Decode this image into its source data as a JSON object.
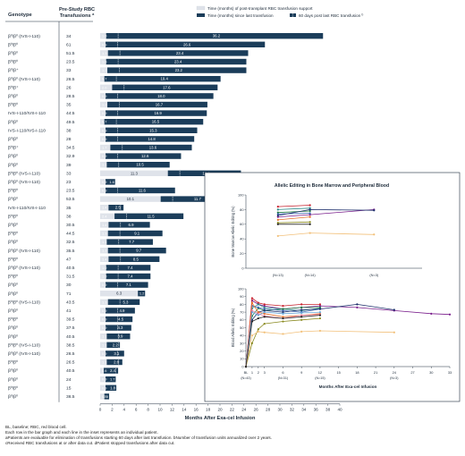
{
  "header": {
    "col_genotype": "Genotype",
    "col_transfusions_line1": "Pre-Study RBC",
    "col_transfusions_line2": "Transfusions",
    "col_transfusions_sup": "a"
  },
  "legend": {
    "items": [
      {
        "label": "Time (months) of post-transplant RBC transfusion support",
        "color": "#dfe3ea"
      },
      {
        "label": "Time (months) since last transfusion",
        "color": "#1b3d5a"
      },
      {
        "label": "60 days post last RBC transfusion",
        "color": "#1b3d5a",
        "sup": "b"
      }
    ]
  },
  "colors": {
    "support": "#dfe3ea",
    "since": "#1b3d5a",
    "marker": "#ffffff"
  },
  "chart_data": [
    {
      "type": "bar",
      "orientation": "horizontal",
      "stacked": true,
      "xlabel": "Months After Exa-cel Infusion",
      "xlim": [
        0,
        40
      ],
      "xticks": [
        0,
        2,
        4,
        6,
        8,
        10,
        12,
        14,
        16,
        18,
        20,
        22,
        24,
        26,
        28,
        30,
        32,
        34,
        36,
        38,
        40
      ],
      "categories": [
        "β0/β0 (IVS-I-110)",
        "β0/β0",
        "β0/β0",
        "β0/β0",
        "β0/β+",
        "β0/β0 (IVS-I-110)",
        "β0/β+",
        "β0/β0",
        "β0/β0",
        "IVS-I-110/IVS-I-110",
        "β0/β0",
        "IVS-I-110/IVS-I-110",
        "β0/β0",
        "β0/β+",
        "β0/β0",
        "β0/β0",
        "β0/β0 (IVS-I-110)",
        "β0/β0 (IVS-I-110)",
        "β0/β0",
        "β0/β0",
        "IVS-I-110/IVS-I-110",
        "β0/β0",
        "β0/β0",
        "β0/β0",
        "β0/β0",
        "β0/β0 (IVS-I-110)",
        "β0/β0",
        "β0/β0 (IVS-I-110)",
        "β0/β0",
        "β0/β0",
        "β0/β0",
        "β0/β0 (IVS-I-110)",
        "β0/β0",
        "β0/β0",
        "β0/β0",
        "β0/β0",
        "β0/β0 (IVS-I-110)",
        "β0/β0 (IVS-I-110)",
        "β0/β0",
        "β0/β0",
        "β0/β0",
        "β0/β0",
        "β0/β0"
      ],
      "transfusions": [
        "34",
        "61",
        "51.5",
        "23.5",
        "33",
        "26.5",
        "26",
        "28.5",
        "35",
        "44.5",
        "49.5",
        "38",
        "28",
        "34.5",
        "32.9",
        "39",
        "33",
        "23",
        "23.5",
        "53.5",
        "35",
        "38",
        "30.5",
        "44.5",
        "32.5",
        "35.5",
        "47",
        "40.5",
        "31.5",
        "30",
        "71",
        "43.5",
        "41",
        "39.5",
        "37.5",
        "40.5",
        "38.5",
        "26.5",
        "26.5",
        "40.5",
        "24",
        "15",
        "36.5"
      ],
      "series": [
        {
          "name": "Time (months) of post-transplant RBC transfusion support",
          "values": [
            1.0,
            0.9,
            1.3,
            1.0,
            1.2,
            0.7,
            2.0,
            0.9,
            1.2,
            0.9,
            0.7,
            0.9,
            0.9,
            1.7,
            0.9,
            1.1,
            11.3,
            0.9,
            0.9,
            10.1,
            1.4,
            2.4,
            1.4,
            1.3,
            1.1,
            1.3,
            1.4,
            1.0,
            1.0,
            0.9,
            6.3,
            1.3,
            0.9,
            0.9,
            0.9,
            1.1,
            1.1,
            0.9,
            1.1,
            0.6,
            0.9,
            0.9,
            0.7
          ]
        },
        {
          "name": "Time (months) since last transfusion",
          "values": [
            36.2,
            26.6,
            23.4,
            23.4,
            23.2,
            19.4,
            17.6,
            18.0,
            16.7,
            16.9,
            16.5,
            15.3,
            14.8,
            13.6,
            12.6,
            10.5,
            12.2,
            1.6,
            11.6,
            11.7,
            2.5,
            11.5,
            6.9,
            9.1,
            7.7,
            9.7,
            8.5,
            7.4,
            7.4,
            7.1,
            1.2,
            5.3,
            4.9,
            4.5,
            4.3,
            3.9,
            2.2,
            3.1,
            2.6,
            2.4,
            1.7,
            1.8,
            0.8
          ]
        }
      ],
      "labels_since": [
        "36.2",
        "26.6",
        "23.4",
        "23.4",
        "23.2",
        "19.4",
        "17.6",
        "18.0",
        "16.7",
        "16.9",
        "16.5",
        "15.3",
        "14.8",
        "13.6",
        "12.6",
        "10.5",
        "12.2",
        "1.6",
        "11.6",
        "11.7",
        "2.5",
        "11.5",
        "6.9",
        "9.1",
        "7.7",
        "9.7",
        "8.5",
        "7.4",
        "7.4",
        "7.1",
        "1.2",
        "5.3",
        "4.9",
        "4.5",
        "4.3",
        "3.9",
        "2.2",
        "3.1",
        "2.6",
        "2.4",
        "1.7",
        "1.8",
        "0.8"
      ],
      "labels_support": [
        "1.0",
        "0.9",
        "1.3",
        "1.0",
        "1.2",
        "0.7",
        "2.0",
        "0.9",
        "1.2",
        "0.9",
        "0.7",
        "0.9",
        "0.9",
        "1.7",
        "0.9",
        "1.1",
        "11.3",
        "0.9",
        "0.9",
        "10.1",
        "1.4",
        "2.4",
        "1.4",
        "1.3",
        "1.1",
        "1.3",
        "1.4",
        "1.0",
        "1.0",
        "0.9",
        "6.3",
        "1.3",
        "0.9",
        "0.9",
        "0.9",
        "1.1",
        "1.1",
        "0.9",
        "1.1",
        "0.6",
        "0.9",
        "0.9",
        "0.7"
      ]
    },
    {
      "type": "line",
      "title": "Allelic Editing in Bone Marrow and Peripheral Blood",
      "panels": [
        {
          "name": "bone-marrow",
          "ylabel": "Bone Marrow Allelic Editing (%)",
          "ylim": [
            0,
            100
          ],
          "yticks": [
            0,
            20,
            40,
            60,
            80,
            100
          ],
          "x_labels": [
            "(N=13)",
            "(N=14)",
            "(N=3)"
          ],
          "x": [
            6,
            12,
            24
          ],
          "series": [
            {
              "color": "#7a1f8c",
              "values": [
                70,
                73,
                80
              ]
            },
            {
              "color": "#c8202d",
              "values": [
                84,
                86,
                null
              ]
            },
            {
              "color": "#2a8a8a",
              "values": [
                80,
                82,
                null
              ]
            },
            {
              "color": "#1e7a40",
              "values": [
                76,
                78,
                null
              ]
            },
            {
              "color": "#3a64b0",
              "values": [
                74,
                75,
                null
              ]
            },
            {
              "color": "#1b2d6a",
              "values": [
                72,
                80,
                79
              ]
            },
            {
              "color": "#e8702a",
              "values": [
                66,
                70,
                null
              ]
            },
            {
              "color": "#8a8a20",
              "values": [
                62,
                63,
                null
              ]
            },
            {
              "color": "#222222",
              "values": [
                60,
                60,
                null
              ]
            },
            {
              "color": "#f2c07a",
              "values": [
                44,
                48,
                46
              ]
            }
          ]
        },
        {
          "name": "blood",
          "ylabel": "Blood Allelic Editing (%)",
          "ylim": [
            0,
            100
          ],
          "yticks": [
            0,
            10,
            20,
            30,
            40,
            50,
            60,
            70,
            80,
            90,
            100
          ],
          "xlabel": "Months After Exa-cel Infusion",
          "xticks": [
            "BL",
            "1",
            "2",
            "3",
            "6",
            "9",
            "12",
            "15",
            "18",
            "21",
            "24",
            "27",
            "30",
            "33"
          ],
          "n_labels": [
            "(N=43)",
            "(N=31)",
            "(N=15)",
            "(N=3)"
          ],
          "x": [
            0,
            1,
            2,
            3,
            6,
            9,
            12,
            18,
            24,
            30,
            33
          ],
          "series": [
            {
              "color": "#7a1f8c",
              "values": [
                0,
                85,
                80,
                78,
                74,
                76,
                78,
                76,
                72,
                68,
                67
              ]
            },
            {
              "color": "#c8202d",
              "values": [
                0,
                88,
                82,
                80,
                78,
                80,
                80,
                null,
                null,
                null,
                null
              ]
            },
            {
              "color": "#2a8a8a",
              "values": [
                0,
                75,
                80,
                76,
                74,
                72,
                75,
                null,
                null,
                null,
                null
              ]
            },
            {
              "color": "#1e7a40",
              "values": [
                0,
                65,
                75,
                72,
                74,
                76,
                76,
                null,
                null,
                null,
                null
              ]
            },
            {
              "color": "#3a64b0",
              "values": [
                0,
                78,
                76,
                74,
                72,
                70,
                74,
                null,
                null,
                null,
                null
              ]
            },
            {
              "color": "#1b2d6a",
              "values": [
                0,
                60,
                70,
                72,
                70,
                73,
                74,
                80,
                73,
                null,
                null
              ]
            },
            {
              "color": "#e8702a",
              "values": [
                0,
                82,
                70,
                68,
                64,
                66,
                68,
                null,
                null,
                null,
                null
              ]
            },
            {
              "color": "#8a8a20",
              "values": [
                0,
                30,
                48,
                55,
                58,
                60,
                62,
                null,
                null,
                null,
                null
              ]
            },
            {
              "color": "#e880a0",
              "values": [
                0,
                72,
                68,
                65,
                62,
                66,
                67,
                null,
                null,
                null,
                null
              ]
            },
            {
              "color": "#6aa8d8",
              "values": [
                0,
                70,
                66,
                70,
                68,
                69,
                70,
                null,
                null,
                null,
                null
              ]
            },
            {
              "color": "#f2c07a",
              "values": [
                0,
                40,
                45,
                44,
                42,
                45,
                46,
                null,
                44,
                null,
                null
              ]
            },
            {
              "color": "#222222",
              "values": [
                0,
                58,
                62,
                64,
                62,
                64,
                66,
                null,
                null,
                null,
                null
              ]
            }
          ]
        }
      ]
    }
  ],
  "footnotes": [
    "BL, baseline; RBC, red blood cell.",
    "Each row in the bar graph and each line in the inset represents an individual patient.",
    "aPatients are evaluable for elimination of transfusions starting 60 days after last transfusion. bNumber of transfusion units annualized over 2 years.",
    "cReceived RBC transfusions at or after data cut. dPatient stopped transfusions after data cut."
  ]
}
